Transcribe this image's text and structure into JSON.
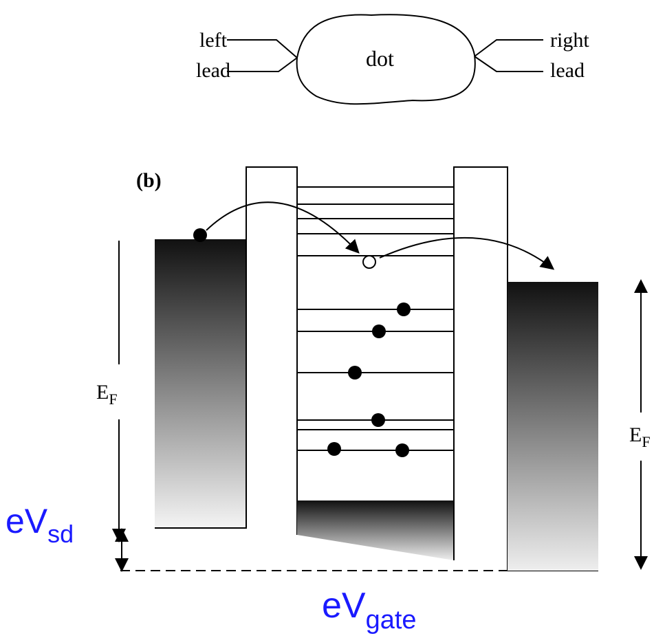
{
  "panel_a": {
    "left_lead": [
      "left",
      "lead"
    ],
    "dot": "dot",
    "right_lead": [
      "right",
      "lead"
    ]
  },
  "panel_b": {
    "label": "(b)",
    "fermi_left": {
      "main": "E",
      "sub": "F"
    },
    "fermi_right": {
      "main": "E",
      "sub": "F"
    },
    "bias": {
      "main": "eV",
      "sub": "sd"
    },
    "gate": {
      "main": "eV",
      "sub": "gate"
    }
  }
}
